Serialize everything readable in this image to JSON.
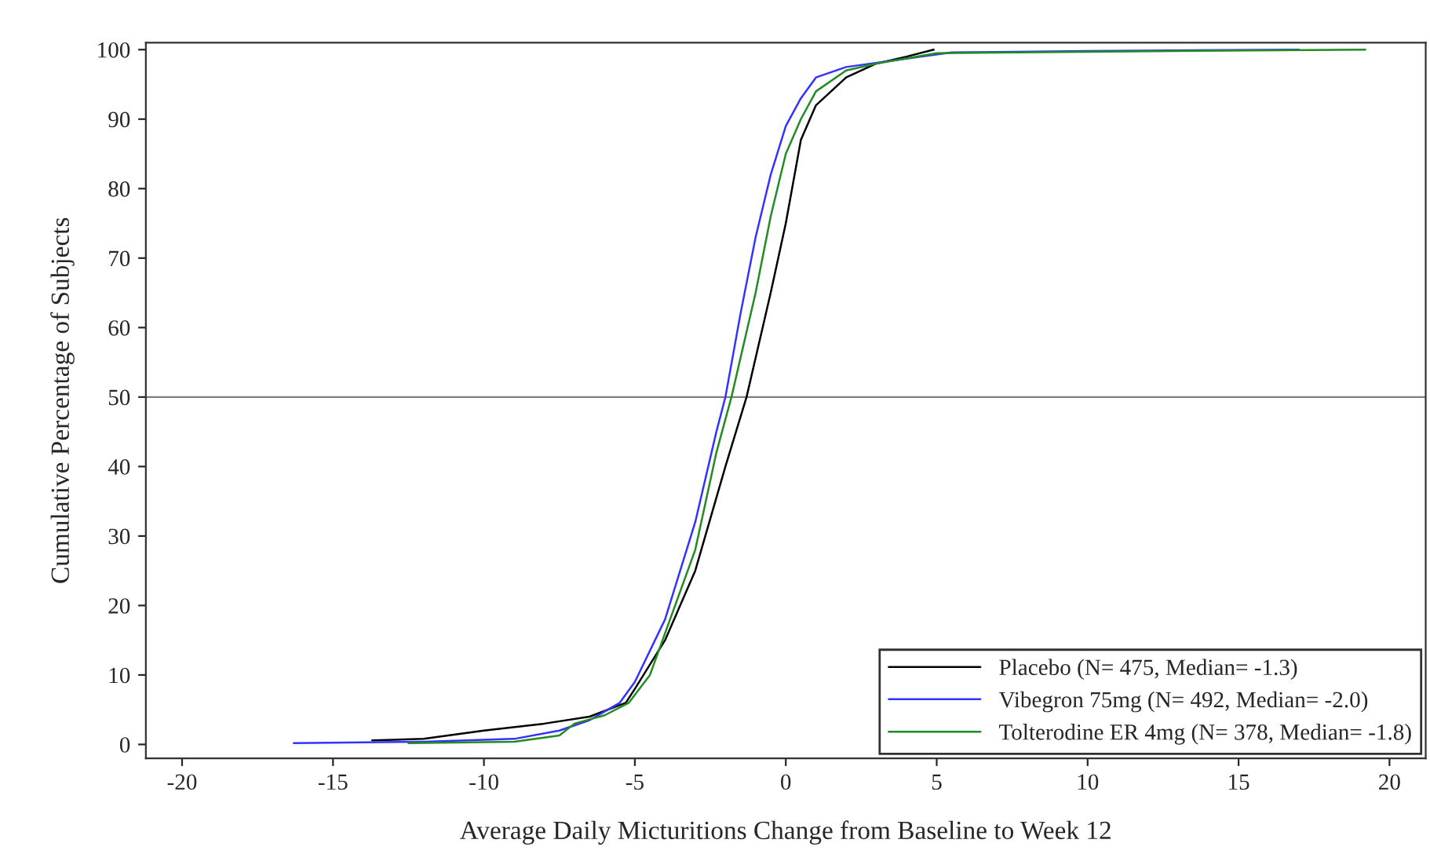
{
  "chart_data": {
    "type": "line",
    "xlabel": "Average Daily Micturitions Change from Baseline to Week 12",
    "ylabel": "Cumulative Percentage of Subjects",
    "xlim": [
      -21.2,
      21.2
    ],
    "ylim": [
      -2,
      101
    ],
    "xticks": [
      -20,
      -15,
      -10,
      -5,
      0,
      5,
      10,
      15,
      20
    ],
    "yticks": [
      0,
      10,
      20,
      30,
      40,
      50,
      60,
      70,
      80,
      90,
      100
    ],
    "grid": false,
    "legend": "bottom right",
    "marker": "none",
    "line_style": "solid",
    "ref_lines": [
      {
        "axis": "y",
        "value": 50,
        "color": "#808080"
      }
    ],
    "series": [
      {
        "name": "Placebo (N= 475, Median= -1.3)",
        "color": "#000000",
        "x": [
          -13.7,
          -12,
          -10,
          -8,
          -6.5,
          -5.3,
          -5,
          -4,
          -3,
          -2,
          -1.3,
          -0.5,
          0,
          0.5,
          1,
          2,
          3,
          4,
          4.9
        ],
        "values": [
          0.6,
          0.8,
          2,
          3,
          4,
          6,
          8,
          15,
          25,
          40,
          50,
          65,
          75,
          87,
          92,
          96,
          98,
          99,
          100
        ]
      },
      {
        "name": "Vibegron 75mg (N= 492, Median= -2.0)",
        "color": "#3333ff",
        "x": [
          -16.3,
          -12,
          -9,
          -7.5,
          -6.5,
          -5.5,
          -5,
          -4,
          -3,
          -2.3,
          -2,
          -1.5,
          -1,
          -0.5,
          0,
          0.5,
          1,
          2,
          4.5,
          5.5,
          10,
          17
        ],
        "values": [
          0.2,
          0.4,
          0.8,
          2,
          3.5,
          6,
          9,
          18,
          32,
          45,
          50,
          62,
          73,
          82,
          89,
          93,
          96,
          97.5,
          99,
          99.6,
          99.8,
          100
        ]
      },
      {
        "name": "Tolterodine ER 4mg (N= 378, Median= -1.8)",
        "color": "#228b22",
        "x": [
          -12.5,
          -9,
          -7.5,
          -7,
          -6,
          -5.2,
          -4.5,
          -4,
          -3,
          -2.3,
          -1.8,
          -1,
          -0.5,
          0,
          0.5,
          1,
          2,
          3,
          5,
          10,
          19.2
        ],
        "values": [
          0.2,
          0.4,
          1.3,
          3,
          4.2,
          6,
          10,
          16,
          28,
          42,
          50,
          65,
          76,
          85,
          90,
          94,
          97,
          98,
          99.5,
          99.7,
          100
        ]
      }
    ]
  }
}
